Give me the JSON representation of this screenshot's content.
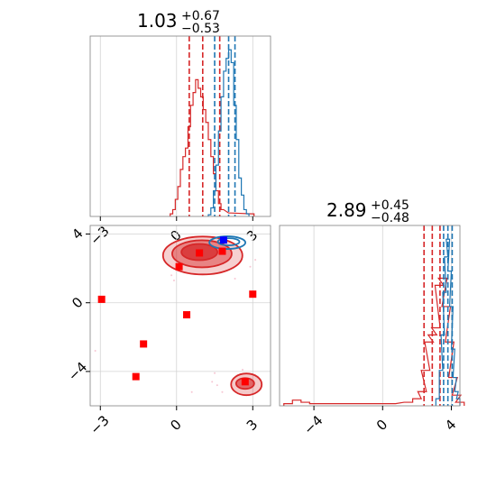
{
  "chart_data": {
    "type": "corner",
    "colors": {
      "red": "#d62728",
      "blue": "#1f77b4",
      "blue_marker": "#0000ff",
      "marker_red": "#ff0000",
      "grid": "#d3d3d3"
    },
    "panels": [
      {
        "id": "hist-param-1",
        "type": "histogram",
        "title": {
          "value": "1.03",
          "sup": "+0.67",
          "sub": "−0.53"
        },
        "xlim": [
          -3.4,
          3.7
        ],
        "x_ticks": [
          -3,
          0,
          3
        ],
        "grid_x": [
          -3,
          0,
          3
        ],
        "series": [
          {
            "name": "red",
            "color": "#d62728",
            "bins": [
              [
                -0.2,
                0.3
              ],
              [
                -0.1,
                0.8
              ],
              [
                0.0,
                2.0
              ],
              [
                0.1,
                3.5
              ],
              [
                0.2,
                5.5
              ],
              [
                0.3,
                7.0
              ],
              [
                0.4,
                8.0
              ],
              [
                0.5,
                10.5
              ],
              [
                0.6,
                13.0
              ],
              [
                0.7,
                14.5
              ],
              [
                0.8,
                16.0
              ],
              [
                0.9,
                15.0
              ],
              [
                1.0,
                14.0
              ],
              [
                1.1,
                12.5
              ],
              [
                1.2,
                11.0
              ],
              [
                1.3,
                9.0
              ],
              [
                1.4,
                7.0
              ],
              [
                1.5,
                5.0
              ],
              [
                1.6,
                3.0
              ],
              [
                1.7,
                1.5
              ],
              [
                1.8,
                0.8
              ],
              [
                2.1,
                0.4
              ],
              [
                3.0,
                0.3
              ]
            ],
            "quantiles": [
              0.5,
              1.03,
              1.7
            ]
          },
          {
            "name": "blue",
            "color": "#1f77b4",
            "bins": [
              [
                1.3,
                0.2
              ],
              [
                1.4,
                1.0
              ],
              [
                1.5,
                3.0
              ],
              [
                1.6,
                6.0
              ],
              [
                1.7,
                10.0
              ],
              [
                1.8,
                14.0
              ],
              [
                1.9,
                17.0
              ],
              [
                2.0,
                18.5
              ],
              [
                2.1,
                19.5
              ],
              [
                2.2,
                18.0
              ],
              [
                2.3,
                13.0
              ],
              [
                2.4,
                9.0
              ],
              [
                2.5,
                4.5
              ],
              [
                2.6,
                2.5
              ],
              [
                2.7,
                0.8
              ],
              [
                2.8,
                0.3
              ]
            ],
            "quantiles": [
              1.5,
              2.05,
              2.3
            ]
          }
        ]
      },
      {
        "id": "scatter-param-1-vs-2",
        "type": "contour",
        "xlim": [
          -3.4,
          3.7
        ],
        "ylim": [
          -6.0,
          4.5
        ],
        "x_ticks": [
          -3,
          0,
          3
        ],
        "y_ticks": [
          -4,
          0,
          4
        ],
        "grid_x": [
          -3,
          0,
          3
        ],
        "grid_y": [
          -4,
          0,
          4
        ],
        "red_markers": [
          [
            -2.95,
            0.2
          ],
          [
            0.1,
            2.1
          ],
          [
            0.9,
            2.9
          ],
          [
            1.8,
            3.0
          ],
          [
            3.0,
            0.5
          ],
          [
            0.4,
            -0.7
          ],
          [
            -1.3,
            -2.4
          ],
          [
            -1.6,
            -4.3
          ],
          [
            2.7,
            -4.6
          ]
        ],
        "blue_markers": [
          [
            1.85,
            3.65
          ]
        ]
      },
      {
        "id": "hist-param-2",
        "type": "histogram",
        "title": {
          "value": "2.89",
          "sup": "+0.45",
          "sub": "−0.48"
        },
        "xlim": [
          -6.0,
          4.5
        ],
        "x_ticks": [
          -4,
          0,
          4
        ],
        "grid_x": [
          -4,
          0,
          4
        ],
        "series": [
          {
            "name": "red",
            "color": "#d62728",
            "bins": [
              [
                -5.5,
                0.3
              ],
              [
                -5.0,
                0.8
              ],
              [
                -4.5,
                0.5
              ],
              [
                -4.0,
                0.3
              ],
              [
                0.5,
                0.3
              ],
              [
                1.5,
                0.5
              ],
              [
                2.0,
                1.0
              ],
              [
                2.3,
                2.0
              ],
              [
                2.5,
                5.0
              ],
              [
                2.7,
                9.0
              ],
              [
                2.9,
                10.0
              ],
              [
                3.1,
                11.0
              ],
              [
                3.3,
                17.0
              ],
              [
                3.5,
                18.0
              ],
              [
                3.7,
                14.0
              ],
              [
                3.9,
                9.0
              ],
              [
                4.1,
                4.0
              ],
              [
                4.3,
                1.5
              ],
              [
                4.5,
                0.5
              ]
            ],
            "quantiles": [
              2.41,
              2.89,
              3.34
            ]
          },
          {
            "name": "blue",
            "color": "#1f77b4",
            "bins": [
              [
                3.2,
                1.0
              ],
              [
                3.4,
                5.0
              ],
              [
                3.5,
                10.0
              ],
              [
                3.6,
                16.0
              ],
              [
                3.7,
                21.0
              ],
              [
                3.8,
                23.5
              ],
              [
                3.9,
                19.0
              ],
              [
                4.0,
                14.0
              ],
              [
                4.1,
                8.0
              ],
              [
                4.2,
                4.0
              ],
              [
                4.3,
                2.0
              ],
              [
                4.4,
                1.0
              ]
            ],
            "quantiles": [
              3.55,
              3.8,
              4.05
            ]
          }
        ]
      }
    ]
  }
}
